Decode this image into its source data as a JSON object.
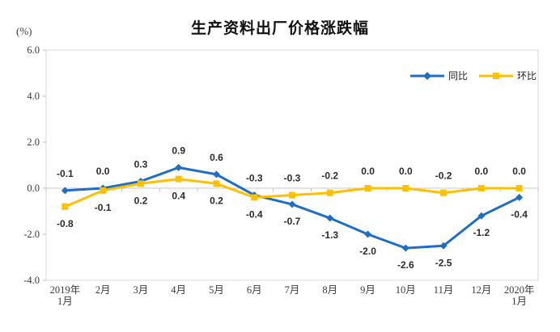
{
  "title": "生产资料出厂价格涨跌幅",
  "unit_label": "(%)",
  "chart_data": {
    "type": "line",
    "title": "生产资料出厂价格涨跌幅",
    "ylabel": "(%)",
    "ylim": [
      -4.0,
      6.0
    ],
    "y_tick_labels": [
      "6.0",
      "4.0",
      "2.0",
      "0.0",
      "-2.0",
      "-4.0"
    ],
    "grid": false,
    "legend_position": "top-right",
    "data_labels": true,
    "categories": [
      "2019年\n1月",
      "2月",
      "3月",
      "4月",
      "5月",
      "6月",
      "7月",
      "8月",
      "9月",
      "10月",
      "11月",
      "12月",
      "2020年\n1月"
    ],
    "series": [
      {
        "name": "同比",
        "color": "#1F6EC6",
        "marker": "diamond",
        "values": [
          -0.1,
          0.0,
          0.3,
          0.9,
          0.6,
          -0.3,
          -0.7,
          -1.3,
          -2.0,
          -2.6,
          -2.5,
          -1.2,
          -0.4
        ]
      },
      {
        "name": "环比",
        "color": "#FFC000",
        "marker": "square",
        "values": [
          -0.8,
          -0.1,
          0.2,
          0.4,
          0.2,
          -0.4,
          -0.3,
          -0.2,
          0.0,
          0.0,
          -0.2,
          0.0,
          0.0
        ]
      }
    ],
    "colors": {
      "plot_border": "#D9D9D9",
      "zero_line": "#C9C9C9",
      "tick": "#BFBFBF"
    }
  }
}
